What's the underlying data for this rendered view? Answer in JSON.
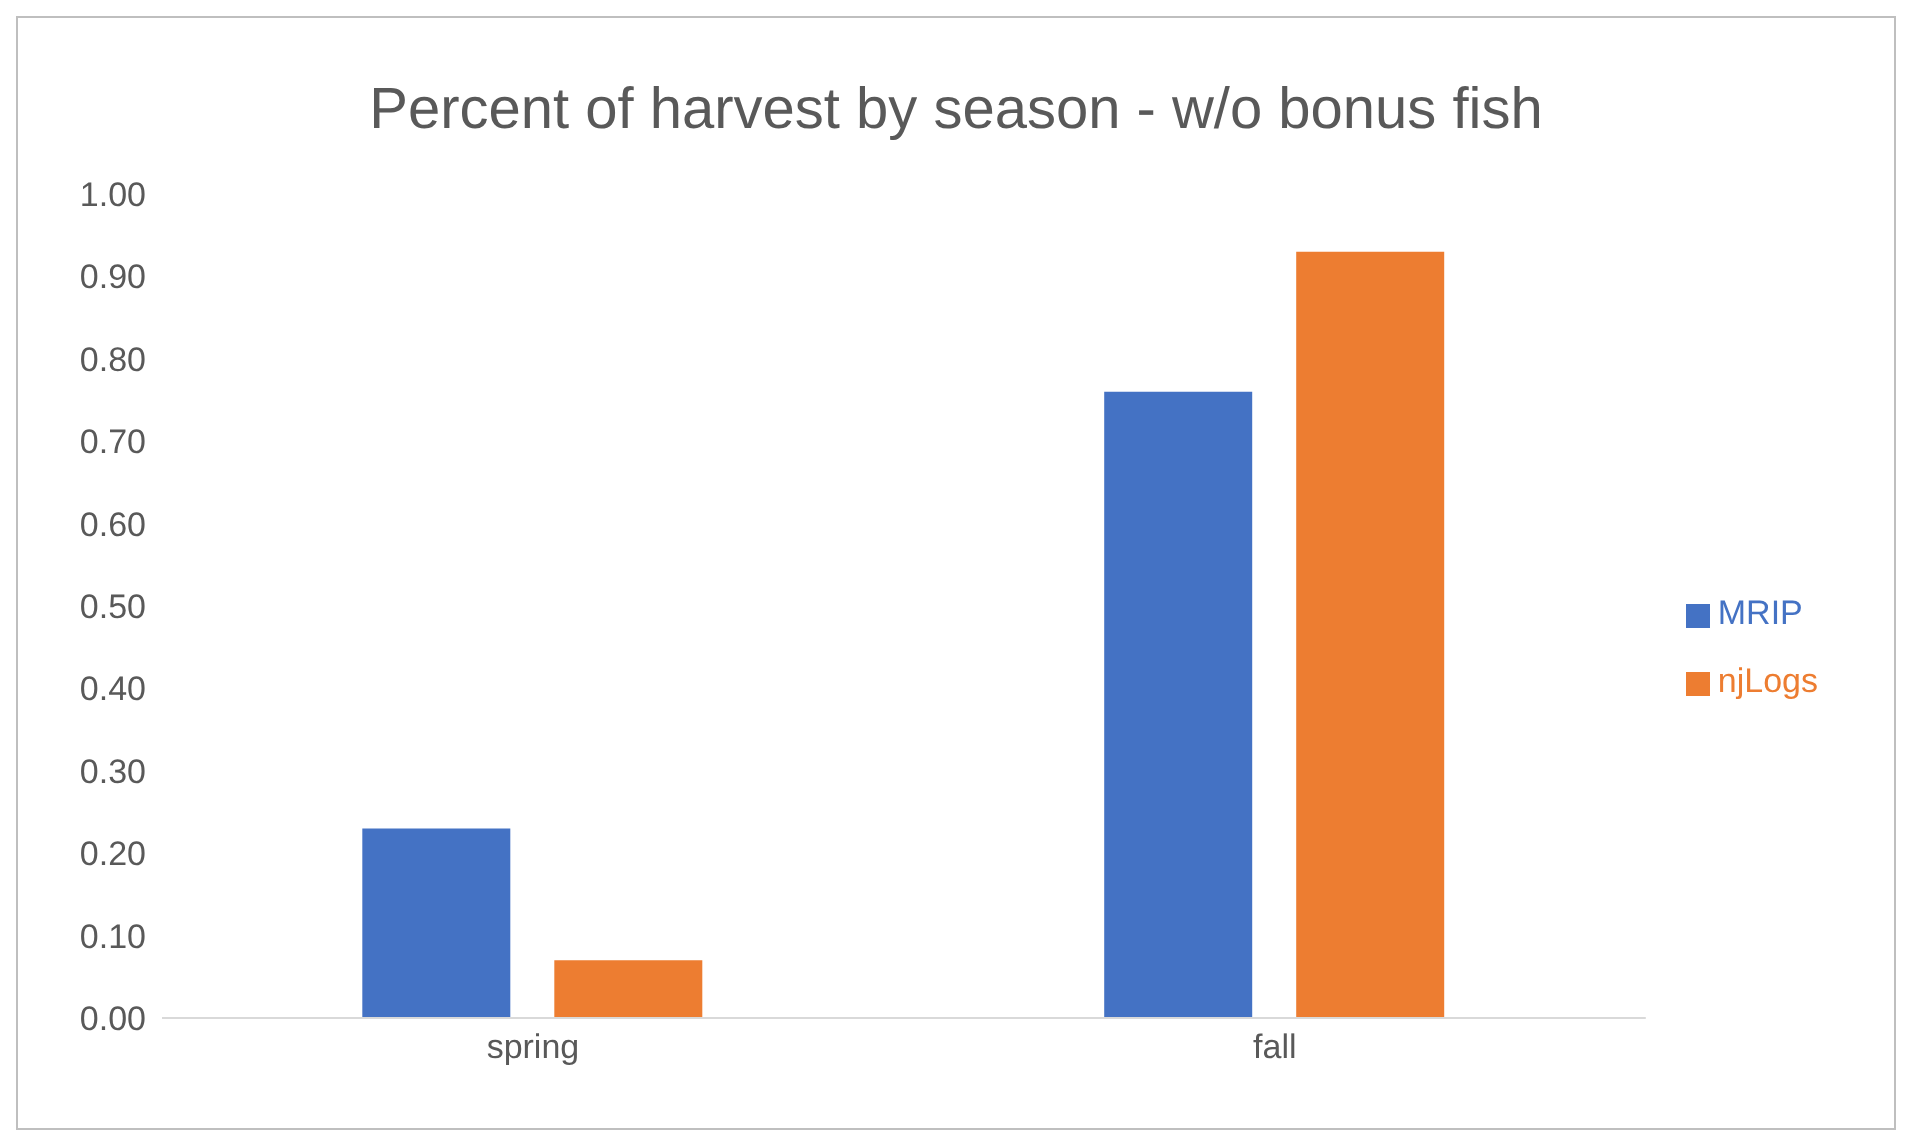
{
  "chart_data": {
    "type": "bar",
    "title": "Percent of harvest by season - w/o bonus fish",
    "categories": [
      "spring",
      "fall"
    ],
    "series": [
      {
        "name": "MRIP",
        "color": "#4472c4",
        "values": [
          0.23,
          0.76
        ]
      },
      {
        "name": "njLogs",
        "color": "#ed7d31",
        "values": [
          0.07,
          0.93
        ]
      }
    ],
    "ylim": [
      0,
      1
    ],
    "yticks": [
      {
        "value": 0,
        "label": "0.00"
      },
      {
        "value": 0.1,
        "label": "0.10"
      },
      {
        "value": 0.2,
        "label": "0.20"
      },
      {
        "value": 0.3,
        "label": "0.30"
      },
      {
        "value": 0.4,
        "label": "0.40"
      },
      {
        "value": 0.5,
        "label": "0.50"
      },
      {
        "value": 0.6,
        "label": "0.60"
      },
      {
        "value": 0.7,
        "label": "0.70"
      },
      {
        "value": 0.8,
        "label": "0.80"
      },
      {
        "value": 0.9,
        "label": "0.90"
      },
      {
        "value": 1,
        "label": "1.00"
      }
    ],
    "grid": false,
    "legend": "right"
  }
}
